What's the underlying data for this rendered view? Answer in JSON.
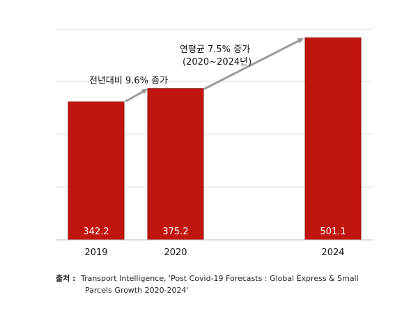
{
  "chart_data": {
    "type": "bar",
    "title": "",
    "xlabel": "",
    "ylabel": "",
    "categories": [
      "2019",
      "2020",
      "2024"
    ],
    "values": [
      342.2,
      375.2,
      501.1
    ],
    "value_labels": [
      "342.2",
      "375.2",
      "501.1"
    ],
    "ylim": [
      0,
      500
    ],
    "grid": true,
    "legend": "none",
    "annotations": {
      "yoy": "전년대비 9.6% 증가",
      "cagr_line1": "연평균 7.5% 증가",
      "cagr_line2": "(2020~2024년)"
    }
  },
  "colors": {
    "bar": "#c0150f",
    "bar_edge": "#8e0f0b",
    "grid": "#dddddd",
    "arrow": "#9a9a9a"
  },
  "source": {
    "label": "출처 :",
    "line1": "Transport Intelligence, 'Post Covid-19 Forecasts : Global Express & Small",
    "line2": "Parcels Growth 2020-2024'"
  }
}
